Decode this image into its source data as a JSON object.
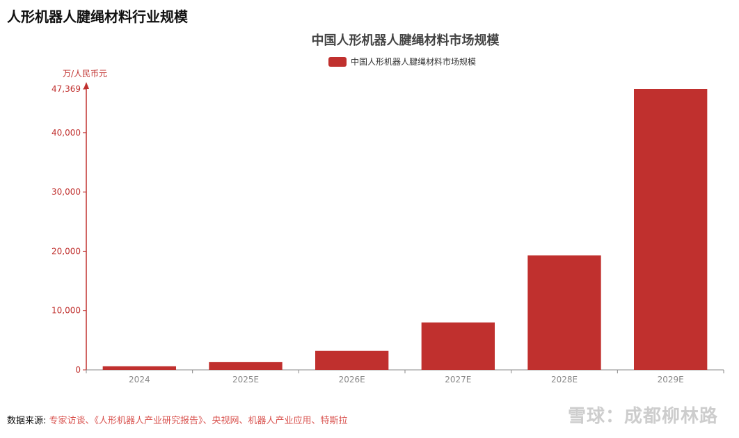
{
  "page_heading": "人形机器人腱绳材料行业规模",
  "footer": {
    "label": "数据来源:",
    "sources": "专家访谈、《人形机器人产业研究报告》、央视网、机器人产业应用、特斯拉"
  },
  "watermark": "雪球：成都柳林路",
  "colors": {
    "bar": "#c0302e",
    "axis": "#c0302e"
  },
  "chart_data": {
    "type": "bar",
    "title": "中国人形机器人腱绳材料市场规模",
    "ylabel": "万/人民币元",
    "xlabel": "",
    "categories": [
      "2024",
      "2025E",
      "2026E",
      "2027E",
      "2028E",
      "2029E"
    ],
    "series": [
      {
        "name": "中国人形机器人腱绳材料市场规模",
        "values": [
          600,
          1300,
          3200,
          8000,
          19300,
          47369
        ]
      }
    ],
    "ylim": [
      0,
      47369
    ],
    "yticks": [
      "0",
      "10,000",
      "20,000",
      "30,000",
      "40,000",
      "47,369"
    ],
    "ytick_values": [
      0,
      10000,
      20000,
      30000,
      40000,
      47369
    ],
    "legend": "top",
    "grid": false
  }
}
